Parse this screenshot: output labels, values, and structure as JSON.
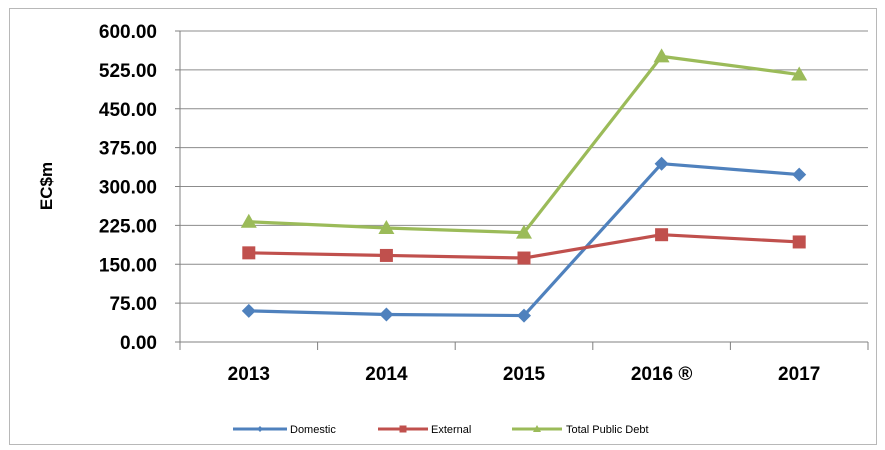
{
  "chart_data": {
    "type": "line",
    "categories": [
      "2013",
      "2014",
      "2015",
      "2016 ®",
      "2017"
    ],
    "ylabel": "EC$m",
    "xlabel": "",
    "title": "",
    "ylim": [
      0,
      600
    ],
    "yticks": [
      "0.00",
      "75.00",
      "150.00",
      "225.00",
      "300.00",
      "375.00",
      "450.00",
      "525.00",
      "600.00"
    ],
    "grid": true,
    "legend_position": "bottom",
    "series": [
      {
        "name": "Domestic",
        "values": [
          60,
          53,
          51,
          344,
          323
        ],
        "color": "#4f81bd",
        "marker": "diamond"
      },
      {
        "name": "External",
        "values": [
          172,
          167,
          162,
          207,
          193
        ],
        "color": "#c0504d",
        "marker": "square"
      },
      {
        "name": "Total Public Debt",
        "values": [
          232,
          220,
          211,
          551,
          516
        ],
        "color": "#9bbb59",
        "marker": "triangle"
      }
    ]
  }
}
